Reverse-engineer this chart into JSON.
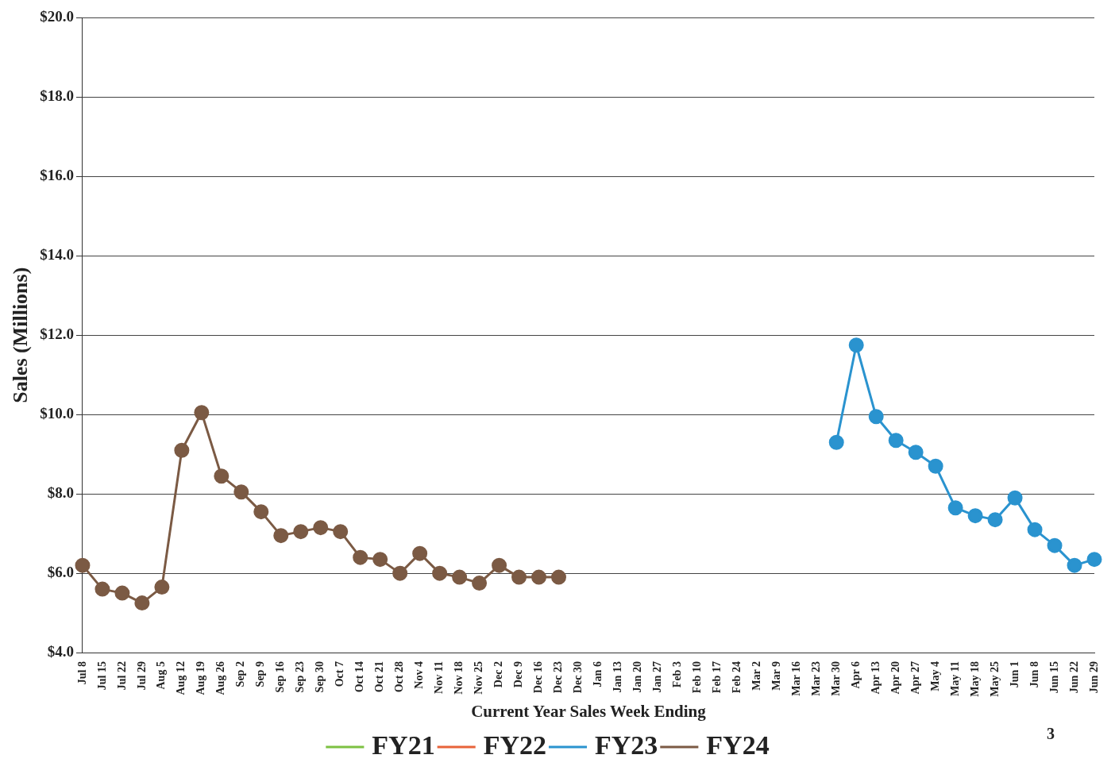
{
  "chart_data": {
    "type": "line",
    "xlabel": "Current Year Sales Week Ending",
    "ylabel": "Sales (Millions)",
    "categories": [
      "Jul 8",
      "Jul 15",
      "Jul 22",
      "Jul 29",
      "Aug 5",
      "Aug 12",
      "Aug 19",
      "Aug 26",
      "Sep 2",
      "Sep 9",
      "Sep 16",
      "Sep 23",
      "Sep 30",
      "Oct 7",
      "Oct 14",
      "Oct 21",
      "Oct 28",
      "Nov 4",
      "Nov 11",
      "Nov 18",
      "Nov 25",
      "Dec 2",
      "Dec 9",
      "Dec 16",
      "Dec 23",
      "Dec 30",
      "Jan 6",
      "Jan 13",
      "Jan 20",
      "Jan 27",
      "Feb 3",
      "Feb 10",
      "Feb 17",
      "Feb 24",
      "Mar 2",
      "Mar 9",
      "Mar 16",
      "Mar 23",
      "Mar 30",
      "Apr 6",
      "Apr 13",
      "Apr 20",
      "Apr 27",
      "May 4",
      "May 11",
      "May 18",
      "May 25",
      "Jun 1",
      "Jun 8",
      "Jun 15",
      "Jun 22",
      "Jun 29"
    ],
    "series": [
      {
        "name": "FY21",
        "color": "#7dc142",
        "values": [
          null,
          null,
          null,
          null,
          null,
          null,
          null,
          null,
          null,
          null,
          null,
          null,
          null,
          null,
          null,
          null,
          null,
          null,
          null,
          null,
          null,
          null,
          null,
          null,
          null,
          null,
          null,
          null,
          null,
          null,
          null,
          null,
          null,
          null,
          null,
          null,
          null,
          null,
          null,
          null,
          null,
          null,
          null,
          null,
          null,
          null,
          null,
          null,
          null,
          null,
          null,
          null
        ]
      },
      {
        "name": "FY22",
        "color": "#e8633a",
        "values": [
          null,
          null,
          null,
          null,
          null,
          null,
          null,
          null,
          null,
          null,
          null,
          null,
          null,
          null,
          null,
          null,
          null,
          null,
          null,
          null,
          null,
          null,
          null,
          null,
          null,
          null,
          null,
          null,
          null,
          null,
          null,
          null,
          null,
          null,
          null,
          null,
          null,
          null,
          null,
          null,
          null,
          null,
          null,
          null,
          null,
          null,
          null,
          null,
          null,
          null,
          null,
          null
        ]
      },
      {
        "name": "FY23",
        "color": "#2a93cf",
        "values": [
          null,
          null,
          null,
          null,
          null,
          null,
          null,
          null,
          null,
          null,
          null,
          null,
          null,
          null,
          null,
          null,
          null,
          null,
          null,
          null,
          null,
          null,
          null,
          null,
          null,
          null,
          null,
          null,
          null,
          null,
          null,
          null,
          null,
          null,
          null,
          null,
          null,
          null,
          9.3,
          11.75,
          9.95,
          9.35,
          9.05,
          8.7,
          7.65,
          7.45,
          7.35,
          7.9,
          7.1,
          6.7,
          6.2,
          6.35
        ]
      },
      {
        "name": "FY24",
        "color": "#7b5a44",
        "values": [
          6.2,
          5.6,
          5.5,
          5.25,
          5.65,
          9.1,
          10.05,
          8.45,
          8.05,
          7.55,
          6.95,
          7.05,
          7.15,
          7.05,
          6.4,
          6.35,
          6.0,
          6.5,
          6.0,
          5.9,
          5.75,
          6.2,
          5.9,
          5.9,
          5.9,
          null,
          null,
          null,
          null,
          null,
          null,
          null,
          null,
          null,
          null,
          null,
          null,
          null,
          null,
          null,
          null,
          null,
          null,
          null,
          null,
          null,
          null,
          null,
          null,
          null,
          null,
          null
        ]
      }
    ],
    "ylim": [
      4,
      20
    ],
    "yticks": [
      {
        "value": 4,
        "label": "$4.0"
      },
      {
        "value": 6,
        "label": "$6.0"
      },
      {
        "value": 8,
        "label": "$8.0"
      },
      {
        "value": 10,
        "label": "$10.0"
      },
      {
        "value": 12,
        "label": "$12.0"
      },
      {
        "value": 14,
        "label": "$14.0"
      },
      {
        "value": 16,
        "label": "$16.0"
      },
      {
        "value": 18,
        "label": "$18.0"
      },
      {
        "value": 20,
        "label": "$20.0"
      }
    ],
    "grid": "y",
    "legend": "bottom",
    "marker": "circle",
    "line_style": "solid",
    "annotations": [
      "3"
    ]
  }
}
